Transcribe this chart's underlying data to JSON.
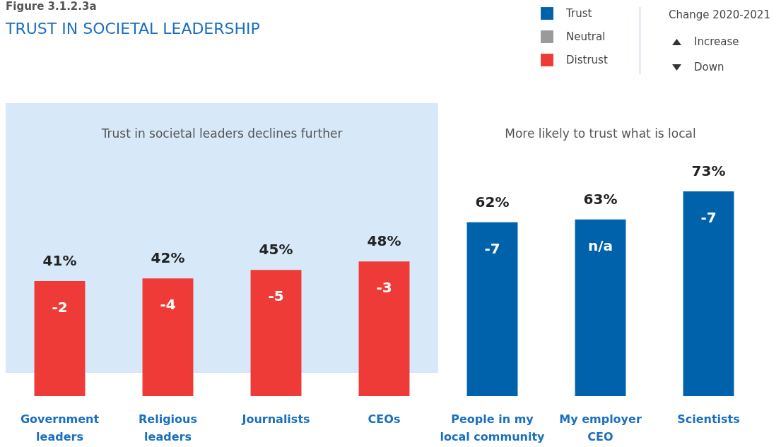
{
  "chart_data": {
    "type": "bar",
    "title": "TRUST IN SOCIETAL LEADERSHIP",
    "subtitle": "Figure 3.1.2.3a",
    "categories": [
      "Government leaders",
      "Religious leaders",
      "Journalists",
      "CEOs",
      "People in my local community",
      "My employer CEO",
      "Scientists"
    ],
    "series": [
      {
        "name": "Trust",
        "color": "#0062ab",
        "values": [
          null,
          null,
          null,
          null,
          62,
          63,
          73
        ],
        "value_labels": [
          null,
          null,
          null,
          null,
          "62%",
          "63%",
          "73%"
        ]
      },
      {
        "name": "Neutral",
        "color": "#9a9a9c",
        "values": [
          null,
          null,
          null,
          null,
          null,
          null,
          null
        ]
      },
      {
        "name": "Distrust",
        "color": "#ee3b37",
        "values": [
          41,
          42,
          45,
          48,
          null,
          null,
          null
        ],
        "value_labels": [
          "41%",
          "42%",
          "45%",
          "48%",
          null,
          null,
          null
        ]
      }
    ],
    "stacked": true,
    "bands": [
      {
        "axis": "x",
        "from": "Government leaders",
        "to": "CEOs",
        "label": "Trust in societal leaders declines further",
        "color": "#d7e9f8"
      }
    ],
    "annotations": [
      "More likely to trust what is local",
      "Change 2020-2021",
      "Increase",
      "Down",
      {
        "text": "-2",
        "x": "Government leaders",
        "y": 41
      },
      {
        "text": "-4",
        "x": "Religious leaders",
        "y": 42
      },
      {
        "text": "-5",
        "x": "Journalists",
        "y": 45
      },
      {
        "text": "-3",
        "x": "CEOs",
        "y": 48
      },
      {
        "text": "-7",
        "x": "People in my local community",
        "y": 62
      },
      {
        "text": "n/a",
        "x": "My employer CEO",
        "y": 63
      },
      {
        "text": "-7",
        "x": "Scientists",
        "y": 73
      }
    ],
    "legend": "top right"
  }
}
